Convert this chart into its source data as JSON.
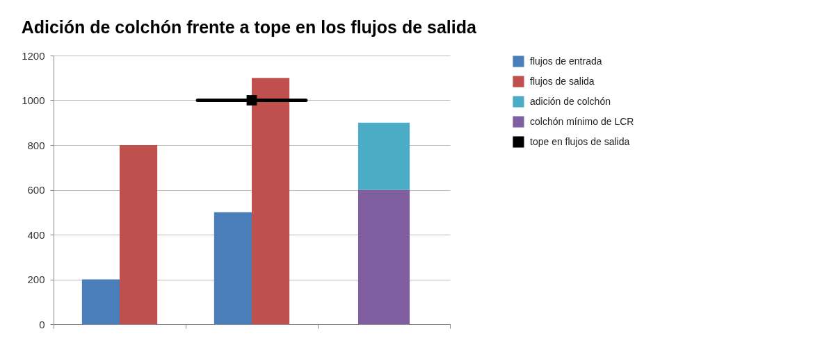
{
  "chart_data": {
    "type": "bar",
    "title": "Adición de colchón frente a tope en los flujos de salida",
    "categories": [
      null,
      null,
      null
    ],
    "series": [
      {
        "name": "flujos de entrada",
        "color": "#4a7ebb",
        "values": [
          200,
          500,
          null
        ]
      },
      {
        "name": "flujos de salida",
        "color": "#c0504d",
        "values": [
          800,
          1100,
          null
        ]
      },
      {
        "name": "adición de colchón",
        "color": "#4bacc6",
        "values": [
          null,
          null,
          300
        ],
        "base": [
          null,
          null,
          600
        ]
      },
      {
        "name": "colchón mínimo de LCR",
        "color": "#7f5fa0",
        "values": [
          null,
          null,
          600
        ]
      },
      {
        "name": "tope en flujos de salida",
        "type": "line",
        "color": "#000000",
        "marker": "square",
        "values": [
          null,
          1000,
          null
        ]
      }
    ],
    "ref_lines": [
      {
        "axis": "y",
        "value": 1000,
        "color": "#000000"
      }
    ],
    "ylim": [
      0,
      1200
    ],
    "yticks": [
      0,
      200,
      400,
      600,
      800,
      1000,
      1200
    ],
    "grid": "y",
    "legend": "right"
  }
}
